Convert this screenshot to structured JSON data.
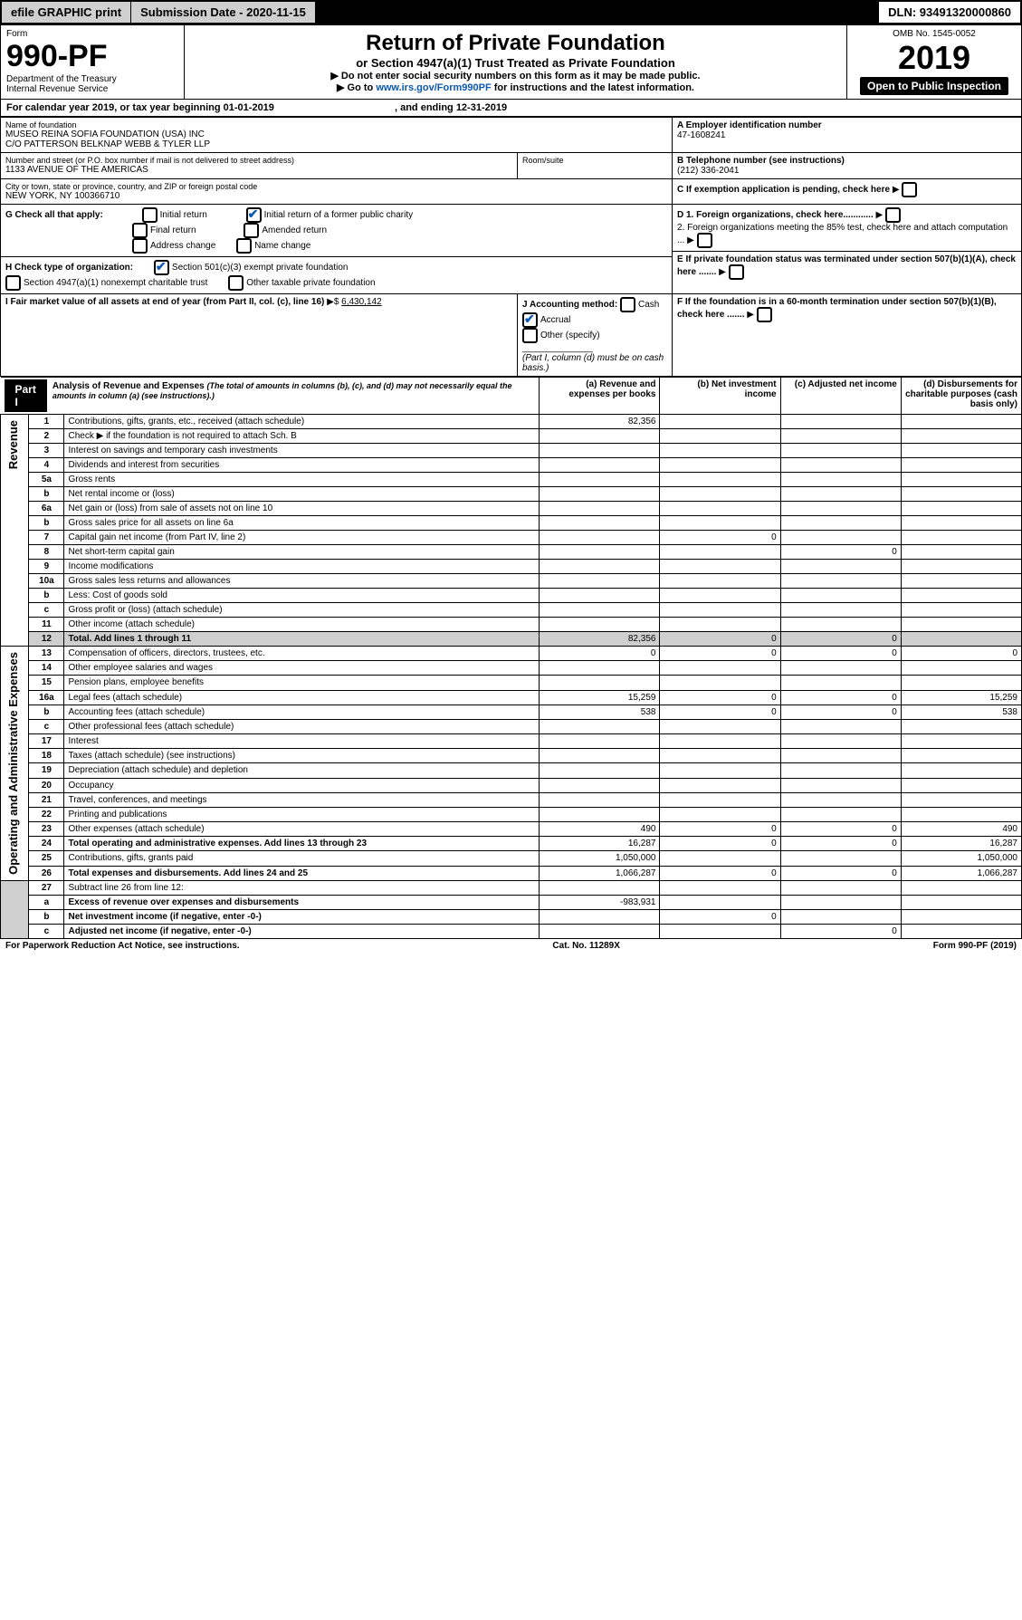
{
  "topbar": {
    "efile": "efile GRAPHIC print",
    "submission": "Submission Date - 2020-11-15",
    "dln": "DLN: 93491320000860"
  },
  "hdr": {
    "form": "Form",
    "formno": "990-PF",
    "dept": "Department of the Treasury",
    "irs": "Internal Revenue Service",
    "omb": "OMB No. 1545-0052",
    "title": "Return of Private Foundation",
    "subtitle": "or Section 4947(a)(1) Trust Treated as Private Foundation",
    "instr1": "▶ Do not enter social security numbers on this form as it may be made public.",
    "instr2_a": "▶ Go to ",
    "instr2_link": "www.irs.gov/Form990PF",
    "instr2_b": " for instructions and the latest information.",
    "year": "2019",
    "open": "Open to Public Inspection"
  },
  "cal": {
    "a": "For calendar year 2019, or tax year beginning 01-01-2019",
    "b": ", and ending 12-31-2019"
  },
  "name": {
    "label": "Name of foundation",
    "v1": "MUSEO REINA SOFIA FOUNDATION (USA) INC",
    "v2": "C/O PATTERSON BELKNAP WEBB & TYLER LLP"
  },
  "addr": {
    "label": "Number and street (or P.O. box number if mail is not delivered to street address)",
    "v": "1133 AVENUE OF THE AMERICAS",
    "room": "Room/suite"
  },
  "city": {
    "label": "City or town, state or province, country, and ZIP or foreign postal code",
    "v": "NEW YORK, NY  100366710"
  },
  "a": {
    "label": "A Employer identification number",
    "v": "47-1608241"
  },
  "b": {
    "label": "B Telephone number (see instructions)",
    "v": "(212) 336-2041"
  },
  "c": "C If exemption application is pending, check here",
  "d1": "D 1. Foreign organizations, check here............",
  "d2": "2. Foreign organizations meeting the 85% test, check here and attach computation ...",
  "e": "E  If private foundation status was terminated under section 507(b)(1)(A), check here .......",
  "f": "F  If the foundation is in a 60-month termination under section 507(b)(1)(B), check here .......",
  "g": {
    "label": "G Check all that apply:",
    "o1": "Initial return",
    "o2": "Final return",
    "o3": "Address change",
    "o4": "Initial return of a former public charity",
    "o5": "Amended return",
    "o6": "Name change"
  },
  "h": {
    "label": "H Check type of organization:",
    "o1": "Section 501(c)(3) exempt private foundation",
    "o2": "Section 4947(a)(1) nonexempt charitable trust",
    "o3": "Other taxable private foundation"
  },
  "i": {
    "label": "I Fair market value of all assets at end of year (from Part II, col. (c), line 16)",
    "v": "6,430,142"
  },
  "j": {
    "label": "J Accounting method:",
    "cash": "Cash",
    "accrual": "Accrual",
    "other": "Other (specify)",
    "note": "(Part I, column (d) must be on cash basis.)"
  },
  "part1": {
    "tag": "Part I",
    "title": "Analysis of Revenue and Expenses",
    "note": "(The total of amounts in columns (b), (c), and (d) may not necessarily equal the amounts in column (a) (see instructions).)",
    "cols": {
      "a": "(a)    Revenue and expenses per books",
      "b": "(b)  Net investment income",
      "c": "(c)  Adjusted net income",
      "d": "(d)  Disbursements for charitable purposes (cash basis only)"
    }
  },
  "rev": "Revenue",
  "exp": "Operating and Administrative Expenses",
  "rows": [
    {
      "n": "1",
      "d": "Contributions, gifts, grants, etc., received (attach schedule)",
      "a": "82,356"
    },
    {
      "n": "2",
      "d": "Check ▶      if the foundation is not required to attach Sch. B"
    },
    {
      "n": "3",
      "d": "Interest on savings and temporary cash investments"
    },
    {
      "n": "4",
      "d": "Dividends and interest from securities"
    },
    {
      "n": "5a",
      "d": "Gross rents"
    },
    {
      "n": "b",
      "d": "Net rental income or (loss)"
    },
    {
      "n": "6a",
      "d": "Net gain or (loss) from sale of assets not on line 10"
    },
    {
      "n": "b",
      "d": "Gross sales price for all assets on line 6a"
    },
    {
      "n": "7",
      "d": "Capital gain net income (from Part IV, line 2)",
      "b": "0"
    },
    {
      "n": "8",
      "d": "Net short-term capital gain",
      "c": "0"
    },
    {
      "n": "9",
      "d": "Income modifications"
    },
    {
      "n": "10a",
      "d": "Gross sales less returns and allowances"
    },
    {
      "n": "b",
      "d": "Less: Cost of goods sold"
    },
    {
      "n": "c",
      "d": "Gross profit or (loss) (attach schedule)"
    },
    {
      "n": "11",
      "d": "Other income (attach schedule)"
    },
    {
      "n": "12",
      "d": "Total. Add lines 1 through 11",
      "a": "82,356",
      "b": "0",
      "c": "0",
      "shade": true,
      "bold": true
    }
  ],
  "erows": [
    {
      "n": "13",
      "d": "Compensation of officers, directors, trustees, etc.",
      "a": "0",
      "b": "0",
      "c": "0",
      "dd": "0"
    },
    {
      "n": "14",
      "d": "Other employee salaries and wages"
    },
    {
      "n": "15",
      "d": "Pension plans, employee benefits"
    },
    {
      "n": "16a",
      "d": "Legal fees (attach schedule)",
      "a": "15,259",
      "b": "0",
      "c": "0",
      "dd": "15,259"
    },
    {
      "n": "b",
      "d": "Accounting fees (attach schedule)",
      "a": "538",
      "b": "0",
      "c": "0",
      "dd": "538"
    },
    {
      "n": "c",
      "d": "Other professional fees (attach schedule)"
    },
    {
      "n": "17",
      "d": "Interest"
    },
    {
      "n": "18",
      "d": "Taxes (attach schedule) (see instructions)"
    },
    {
      "n": "19",
      "d": "Depreciation (attach schedule) and depletion"
    },
    {
      "n": "20",
      "d": "Occupancy"
    },
    {
      "n": "21",
      "d": "Travel, conferences, and meetings"
    },
    {
      "n": "22",
      "d": "Printing and publications"
    },
    {
      "n": "23",
      "d": "Other expenses (attach schedule)",
      "a": "490",
      "b": "0",
      "c": "0",
      "dd": "490"
    },
    {
      "n": "24",
      "d": "Total operating and administrative expenses. Add lines 13 through 23",
      "a": "16,287",
      "b": "0",
      "c": "0",
      "dd": "16,287",
      "bold": true
    },
    {
      "n": "25",
      "d": "Contributions, gifts, grants paid",
      "a": "1,050,000",
      "dd": "1,050,000"
    },
    {
      "n": "26",
      "d": "Total expenses and disbursements. Add lines 24 and 25",
      "a": "1,066,287",
      "b": "0",
      "c": "0",
      "dd": "1,066,287",
      "bold": true
    }
  ],
  "srows": [
    {
      "n": "27",
      "d": "Subtract line 26 from line 12:"
    },
    {
      "n": "a",
      "d": "Excess of revenue over expenses and disbursements",
      "a": "-983,931",
      "bold": true
    },
    {
      "n": "b",
      "d": "Net investment income (if negative, enter -0-)",
      "b": "0",
      "bold": true
    },
    {
      "n": "c",
      "d": "Adjusted net income (if negative, enter -0-)",
      "c": "0",
      "bold": true
    }
  ],
  "foot": {
    "l": "For Paperwork Reduction Act Notice, see instructions.",
    "c": "Cat. No. 11289X",
    "r": "Form 990-PF (2019)"
  }
}
